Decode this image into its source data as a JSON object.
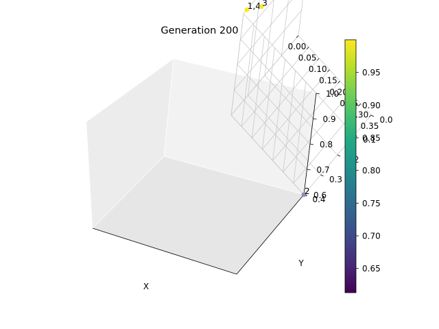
{
  "chart_data": {
    "type": "scatter",
    "title": "Generation 200",
    "xlabel": "X",
    "ylabel": "Y",
    "zlabel": "",
    "x_ticks": [
      "0.00",
      "0.05",
      "0.10",
      "0.15",
      "0.20",
      "0.25",
      "0.30",
      "0.35"
    ],
    "y_ticks": [
      "0.0",
      "0.1",
      "0.2",
      "0.3",
      "0.4"
    ],
    "z_ticks": [
      "0.6",
      "0.7",
      "0.8",
      "0.9",
      "1.0"
    ],
    "xlim": [
      0.0,
      0.35
    ],
    "ylim": [
      0.0,
      0.4
    ],
    "zlim": [
      0.6,
      1.0
    ],
    "grid": true,
    "colormap": "viridis",
    "colorbar": {
      "ticks": [
        "0.65",
        "0.70",
        "0.75",
        "0.80",
        "0.85",
        "0.90",
        "0.95"
      ],
      "range": [
        0.613,
        1.0
      ]
    },
    "points": [
      {
        "label": "1,4",
        "x": 0.0,
        "y": 0.38,
        "z": 1.0,
        "value": 1.0,
        "color": "#fde725"
      },
      {
        "label": "3",
        "x": 0.03,
        "y": 0.33,
        "z": 1.0,
        "value": 1.0,
        "color": "#fde725"
      },
      {
        "label": "2",
        "x": 0.35,
        "y": 0.4,
        "z": 0.6,
        "value": 0.613,
        "color": "#9b86b6"
      }
    ]
  }
}
